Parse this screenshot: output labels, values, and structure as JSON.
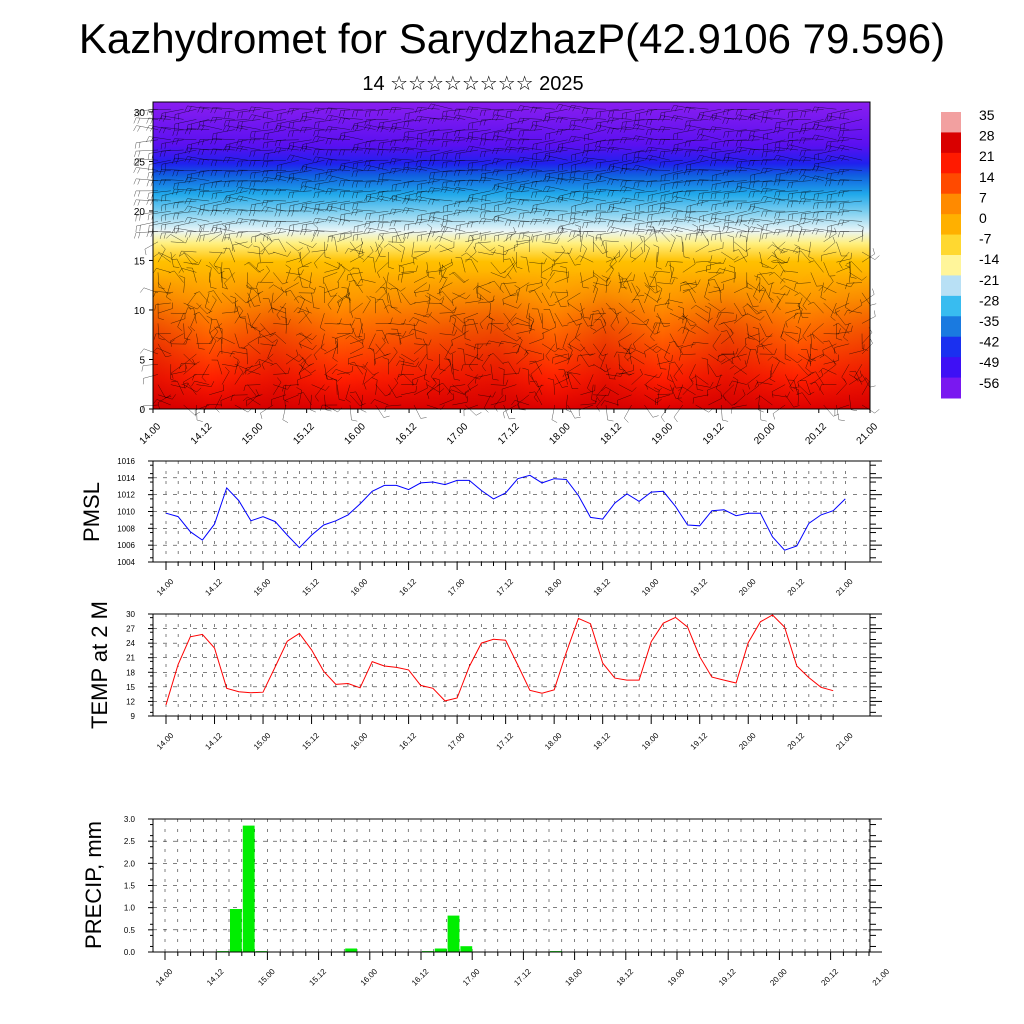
{
  "header": {
    "title": "Kazhydromet for SarydzhazP(42.9106 79.596)",
    "subtitle": "14 ☆☆☆☆☆☆☆☆ 2025"
  },
  "time_labels": [
    "14.00",
    "14.12",
    "15.00",
    "15.12",
    "16.00",
    "16.12",
    "17.00",
    "17.12",
    "18.00",
    "18.12",
    "19.00",
    "19.12",
    "20.00",
    "20.12",
    "21.00"
  ],
  "colorbar": {
    "labels": [
      "35",
      "28",
      "21",
      "14",
      "7",
      "0",
      "-7",
      "-14",
      "-21",
      "-28",
      "-35",
      "-42",
      "-49",
      "-56"
    ],
    "colors": [
      "#f2a0a0",
      "#d90000",
      "#ff1a00",
      "#ff4a00",
      "#ff8a00",
      "#ffb000",
      "#ffd830",
      "#fff59a",
      "#b8e0f5",
      "#38bcf0",
      "#1a7ae0",
      "#1a30f0",
      "#3e10f5",
      "#7a18f0"
    ]
  },
  "colors": {
    "pmsl_line": "#0000ff",
    "temp_line": "#ff0000",
    "precip_bar": "#00ee00"
  },
  "chart_data": [
    {
      "type": "heatmap",
      "title": "Kazhydromet for SarydzhazP(42.9106 79.596)",
      "subtitle": "14 ☆☆☆☆☆☆☆☆ 2025",
      "xlabel": "",
      "ylabel": "",
      "ylim": [
        0,
        31
      ],
      "yticks": [
        0,
        5,
        10,
        15,
        20,
        25,
        30
      ],
      "x_tick_labels": [
        "14.00",
        "14.12",
        "15.00",
        "15.12",
        "16.00",
        "16.12",
        "17.00",
        "17.12",
        "18.00",
        "18.12",
        "19.00",
        "19.12",
        "20.00",
        "20.12",
        "21.00"
      ],
      "colorbar_range": [
        -56,
        35
      ],
      "note_overlay": "wind barbs"
    },
    {
      "type": "line",
      "ylabel": "PMSL",
      "ylim": [
        1004,
        1016
      ],
      "yticks": [
        1004,
        1006,
        1008,
        1010,
        1012,
        1014,
        1016
      ],
      "x_step_hours": 3,
      "values": [
        1009.8,
        1009.4,
        1007.6,
        1006.6,
        1008.5,
        1012.8,
        1011.3,
        1008.9,
        1009.4,
        1008.8,
        1007.2,
        1005.7,
        1007.2,
        1008.4,
        1008.9,
        1009.6,
        1010.9,
        1012.4,
        1013.1,
        1013.1,
        1012.6,
        1013.4,
        1013.5,
        1013.2,
        1013.7,
        1013.7,
        1012.5,
        1011.5,
        1012.2,
        1013.9,
        1014.3,
        1013.4,
        1013.9,
        1013.8,
        1011.9,
        1009.3,
        1009.1,
        1011.0,
        1012.1,
        1011.2,
        1012.3,
        1012.4,
        1010.6,
        1008.4,
        1008.3,
        1010.1,
        1010.2,
        1009.5,
        1009.8,
        1009.8,
        1007.0,
        1005.4,
        1005.9,
        1008.6,
        1009.6,
        1010.1,
        1011.5
      ]
    },
    {
      "type": "line",
      "ylabel": "TEMP at 2 M",
      "ylim": [
        9,
        30
      ],
      "yticks": [
        9,
        12,
        15,
        18,
        21,
        24,
        27,
        30
      ],
      "x_step_hours": 3,
      "values": [
        11.3,
        19.6,
        25.3,
        25.8,
        23.0,
        14.7,
        14.0,
        13.8,
        13.9,
        19.1,
        24.4,
        26.0,
        22.6,
        18.2,
        15.5,
        15.7,
        14.8,
        20.2,
        19.3,
        19.0,
        18.5,
        15.3,
        14.7,
        12.1,
        12.7,
        19.2,
        24.0,
        24.8,
        24.6,
        19.5,
        14.3,
        13.7,
        14.4,
        22.1,
        29.1,
        28.0,
        19.9,
        16.8,
        16.4,
        16.4,
        24.3,
        28.1,
        29.3,
        27.3,
        21.2,
        17.0,
        16.4,
        15.8,
        24.1,
        28.4,
        29.8,
        27.3,
        19.3,
        16.9,
        14.9,
        14.2
      ]
    },
    {
      "type": "bar",
      "ylabel": "PRECIP, mm",
      "ylim": [
        0,
        3.0
      ],
      "yticks": [
        "0.0",
        "0.5",
        "1.0",
        "1.5",
        "2.0",
        "2.5",
        "3.0"
      ],
      "x_step_hours": 3,
      "values": [
        0,
        0,
        0,
        0,
        0,
        0.02,
        0.97,
        2.85,
        0.02,
        0.01,
        0,
        0,
        0,
        0,
        0,
        0.08,
        0,
        0,
        0,
        0,
        0,
        0.02,
        0.08,
        0.82,
        0.13,
        0,
        0,
        0,
        0,
        0,
        0,
        0.02,
        0,
        0,
        0,
        0,
        0,
        0,
        0,
        0,
        0,
        0,
        0,
        0,
        0,
        0,
        0,
        0,
        0,
        0,
        0,
        0,
        0,
        0,
        0,
        0
      ]
    }
  ]
}
